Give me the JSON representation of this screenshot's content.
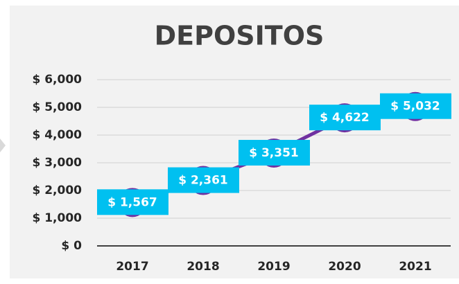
{
  "chart_data": {
    "type": "line",
    "title": "DEPOSITOS",
    "categories": [
      "2017",
      "2018",
      "2019",
      "2020",
      "2021"
    ],
    "series": [
      {
        "name": "Depositos",
        "color": "#7030a0",
        "values": [
          1567,
          2361,
          3351,
          4622,
          5032
        ],
        "value_labels": [
          "$ 1,567",
          "$ 2,361",
          "$ 3,351",
          "$ 4,622",
          "$ 5,032"
        ]
      }
    ],
    "ylim": [
      0,
      6000
    ],
    "yticks": [
      {
        "value": 0,
        "label": "$ 0"
      },
      {
        "value": 1000,
        "label": "$ 1,000"
      },
      {
        "value": 2000,
        "label": "$ 2,000"
      },
      {
        "value": 3000,
        "label": "$ 3,000"
      },
      {
        "value": 4000,
        "label": "$ 4,000"
      },
      {
        "value": 5000,
        "label": "$ 5,000"
      },
      {
        "value": 6000,
        "label": "$ 6,000"
      }
    ],
    "grid": true,
    "label_color": "#00c0f0"
  }
}
